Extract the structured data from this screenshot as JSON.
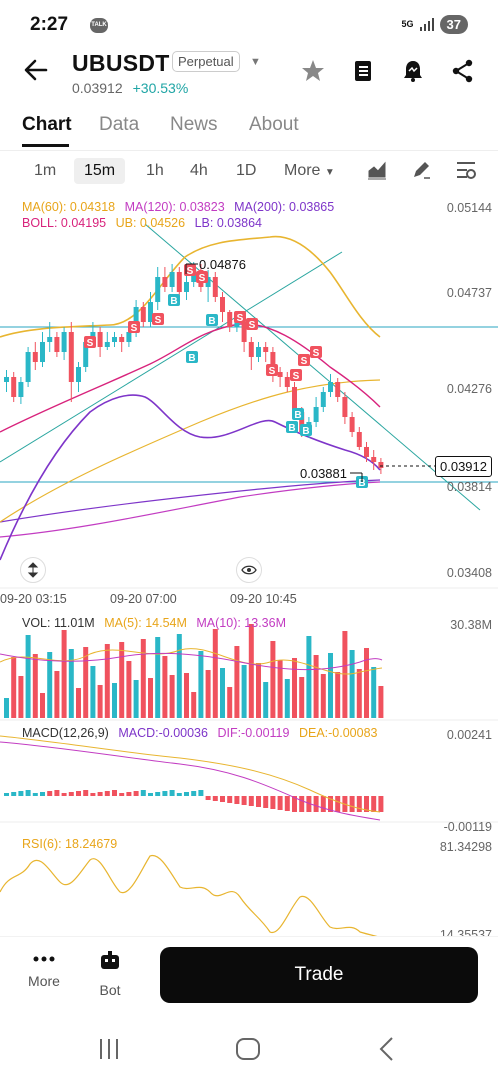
{
  "status": {
    "time": "2:27",
    "talk": "TALK",
    "network": "5G",
    "battery": "37"
  },
  "header": {
    "pair": "UBUSDT",
    "contract": "Perpetual",
    "last_price": "0.03912",
    "change": "+30.53%"
  },
  "tabs": [
    {
      "label": "Chart"
    },
    {
      "label": "Data"
    },
    {
      "label": "News"
    },
    {
      "label": "About"
    }
  ],
  "timeframes": {
    "t1": "1m",
    "t2": "15m",
    "t3": "1h",
    "t4": "4h",
    "t5": "1D",
    "more": "More"
  },
  "indicators": {
    "ma60": "MA(60): 0.04318",
    "ma120": "MA(120): 0.03823",
    "ma200": "MA(200): 0.03865",
    "boll": "BOLL: 0.04195",
    "ub": "UB: 0.04526",
    "lb": "LB: 0.03864",
    "vol": "VOL: 11.01M",
    "vma5": "MA(5): 14.54M",
    "vma10": "MA(10): 13.36M",
    "macd": "MACD(12,26,9)",
    "macd_val": "MACD:-0.00036",
    "dif": "DIF:-0.00119",
    "dea": "DEA:-0.00083",
    "rsi": "RSI(6): 18.24679"
  },
  "price_axis": {
    "p1": "0.05144",
    "p2": "0.04737",
    "p3": "0.04276",
    "p4": "0.03814",
    "p5": "0.03408"
  },
  "time_axis": {
    "t1": "09-20 03:15",
    "t2": "09-20 07:00",
    "t3": "09-20 10:45"
  },
  "annotations": {
    "high": "0.04876",
    "low": "0.03881",
    "current": "0.03912"
  },
  "vol_axis": {
    "max": "30.38M"
  },
  "macd_axis": {
    "top": "0.00241",
    "bottom": "-0.00119"
  },
  "rsi_axis": {
    "top": "81.34298",
    "bottom": "14.35537"
  },
  "bottom": {
    "more": "More",
    "bot": "Bot",
    "trade": "Trade"
  },
  "colors": {
    "up": "#2ab7c7",
    "down": "#f0525e",
    "accent": "#1fa5a5"
  }
}
